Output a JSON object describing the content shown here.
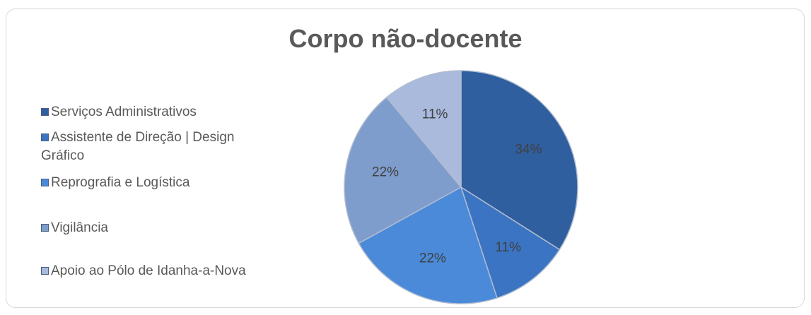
{
  "chart_data": {
    "type": "pie",
    "title": "Corpo não-docente",
    "categories": [
      "Serviços Administrativos",
      "Assistente de Direção | Design Gráfico",
      "Reprografia e Logística",
      "Vigilância",
      "Apoio ao Pólo de Idanha-a-Nova"
    ],
    "values": [
      34,
      11,
      22,
      22,
      11
    ],
    "value_labels": [
      "34%",
      "11%",
      "22%",
      "22%",
      "11%"
    ],
    "colors": [
      "#2f5f9f",
      "#3a74c2",
      "#4a8ad9",
      "#7f9dcc",
      "#a9badd"
    ],
    "legend": "left"
  }
}
